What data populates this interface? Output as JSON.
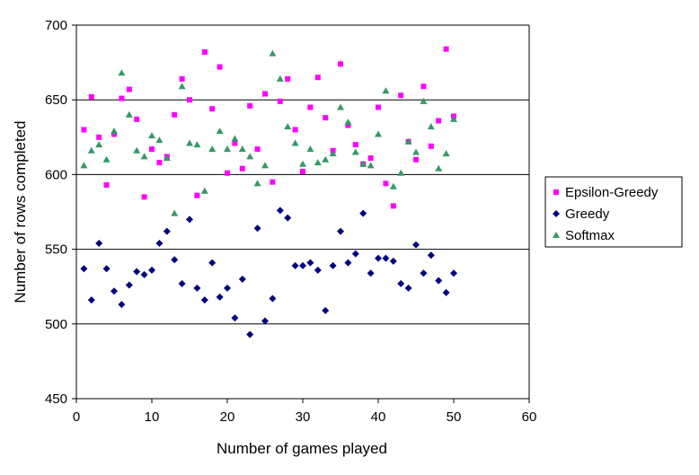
{
  "chart_data": {
    "type": "scatter",
    "xlabel": "Number of games played",
    "ylabel": "Number of rows completed",
    "xlim": [
      0,
      60
    ],
    "ylim": [
      450,
      700
    ],
    "x_ticks": [
      "0",
      "10",
      "20",
      "30",
      "40",
      "50",
      "60"
    ],
    "y_ticks": [
      "450",
      "500",
      "550",
      "600",
      "650",
      "700"
    ],
    "grid": "horizontal",
    "legend_position": "right",
    "series": [
      {
        "name": "Epsilon-Greedy",
        "marker": "square",
        "color": "#FF00FF",
        "x": [
          1,
          2,
          3,
          4,
          5,
          6,
          7,
          8,
          9,
          10,
          11,
          12,
          13,
          14,
          15,
          16,
          17,
          18,
          19,
          20,
          21,
          22,
          23,
          24,
          25,
          26,
          27,
          28,
          29,
          30,
          31,
          32,
          33,
          34,
          35,
          36,
          37,
          38,
          39,
          40,
          41,
          42,
          43,
          44,
          45,
          46,
          47,
          48,
          49,
          50
        ],
        "y": [
          630,
          652,
          625,
          593,
          627,
          651,
          657,
          637,
          585,
          617,
          608,
          612,
          640,
          664,
          650,
          586,
          682,
          644,
          672,
          601,
          621,
          604,
          646,
          617,
          654,
          595,
          649,
          664,
          630,
          602,
          645,
          665,
          638,
          616,
          674,
          633,
          620,
          607,
          611,
          645,
          594,
          579,
          653,
          622,
          610,
          659,
          619,
          636,
          684,
          639
        ]
      },
      {
        "name": "Greedy",
        "marker": "diamond",
        "color": "#000080",
        "x": [
          1,
          2,
          3,
          4,
          5,
          6,
          7,
          8,
          9,
          10,
          11,
          12,
          13,
          14,
          15,
          16,
          17,
          18,
          19,
          20,
          21,
          22,
          23,
          24,
          25,
          26,
          27,
          28,
          29,
          30,
          31,
          32,
          33,
          34,
          35,
          36,
          37,
          38,
          39,
          40,
          41,
          42,
          43,
          44,
          45,
          46,
          47,
          48,
          49,
          50
        ],
        "y": [
          537,
          516,
          554,
          537,
          522,
          513,
          526,
          535,
          533,
          536,
          554,
          562,
          543,
          527,
          570,
          524,
          516,
          541,
          518,
          524,
          504,
          530,
          493,
          564,
          502,
          517,
          576,
          571,
          539,
          539,
          541,
          536,
          509,
          539,
          562,
          541,
          547,
          574,
          534,
          544,
          544,
          542,
          527,
          524,
          553,
          534,
          546,
          529,
          521,
          534
        ]
      },
      {
        "name": "Softmax",
        "marker": "triangle",
        "color": "#339966",
        "x": [
          1,
          2,
          3,
          4,
          5,
          6,
          7,
          8,
          9,
          10,
          11,
          12,
          13,
          14,
          15,
          16,
          17,
          18,
          19,
          20,
          21,
          22,
          23,
          24,
          25,
          26,
          27,
          28,
          29,
          30,
          31,
          32,
          33,
          34,
          35,
          36,
          37,
          38,
          39,
          40,
          41,
          42,
          43,
          44,
          45,
          46,
          47,
          48,
          49,
          50
        ],
        "y": [
          606,
          616,
          620,
          610,
          629,
          668,
          640,
          616,
          612,
          626,
          623,
          611,
          574,
          659,
          621,
          620,
          589,
          617,
          629,
          617,
          624,
          617,
          612,
          594,
          606,
          681,
          664,
          632,
          621,
          607,
          617,
          608,
          610,
          614,
          645,
          635,
          615,
          607,
          606,
          627,
          656,
          592,
          601,
          622,
          615,
          649,
          632,
          604,
          614,
          637
        ]
      }
    ]
  }
}
